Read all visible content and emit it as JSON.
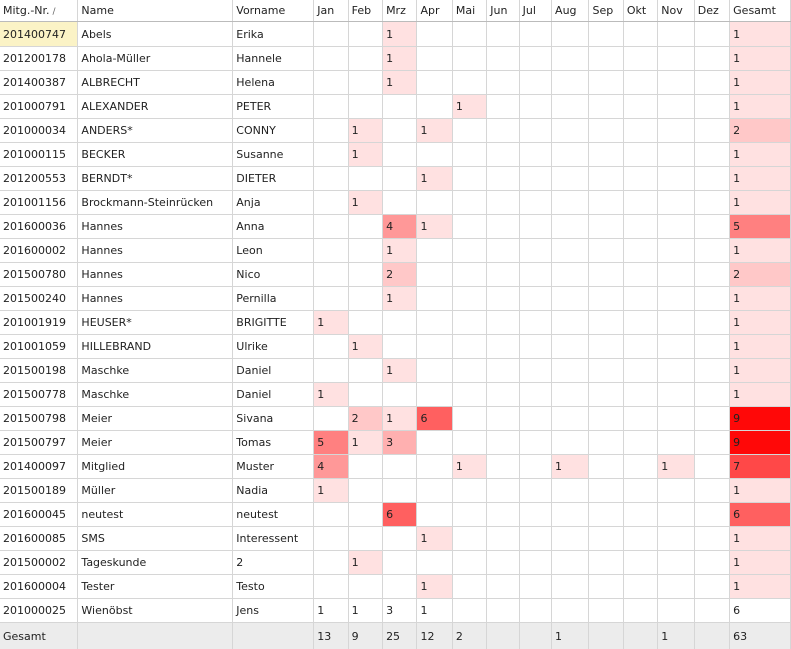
{
  "columns": [
    {
      "key": "nr",
      "label": "Mitg.-Nr.",
      "sort_indicator": "/"
    },
    {
      "key": "name",
      "label": "Name"
    },
    {
      "key": "vorname",
      "label": "Vorname"
    },
    {
      "key": "jan",
      "label": "Jan"
    },
    {
      "key": "feb",
      "label": "Feb"
    },
    {
      "key": "mrz",
      "label": "Mrz"
    },
    {
      "key": "apr",
      "label": "Apr"
    },
    {
      "key": "mai",
      "label": "Mai"
    },
    {
      "key": "jun",
      "label": "Jun"
    },
    {
      "key": "jul",
      "label": "Jul"
    },
    {
      "key": "aug",
      "label": "Aug"
    },
    {
      "key": "sep",
      "label": "Sep"
    },
    {
      "key": "okt",
      "label": "Okt"
    },
    {
      "key": "nov",
      "label": "Nov"
    },
    {
      "key": "dez",
      "label": "Dez"
    },
    {
      "key": "gesamt",
      "label": "Gesamt"
    }
  ],
  "heat_colors": {
    "1": "#ffe1e1",
    "2": "#ffc8c8",
    "3": "#ffb0b0",
    "4": "#ff9898",
    "5": "#ff8080",
    "6": "#ff6060",
    "7": "#ff4848",
    "9": "#ff0808"
  },
  "selected_row": 0,
  "rows": [
    {
      "nr": "201400747",
      "name": "Abels",
      "vorname": "Erika",
      "months": [
        "",
        "",
        "1",
        "",
        "",
        "",
        "",
        "",
        "",
        "",
        "",
        ""
      ],
      "gesamt": "1",
      "heat": true
    },
    {
      "nr": "201200178",
      "name": "Ahola-Müller",
      "vorname": "Hannele",
      "months": [
        "",
        "",
        "1",
        "",
        "",
        "",
        "",
        "",
        "",
        "",
        "",
        ""
      ],
      "gesamt": "1",
      "heat": true
    },
    {
      "nr": "201400387",
      "name": "ALBRECHT",
      "vorname": "Helena",
      "months": [
        "",
        "",
        "1",
        "",
        "",
        "",
        "",
        "",
        "",
        "",
        "",
        ""
      ],
      "gesamt": "1",
      "heat": true
    },
    {
      "nr": "201000791",
      "name": "ALEXANDER",
      "vorname": "PETER",
      "months": [
        "",
        "",
        "",
        "",
        "1",
        "",
        "",
        "",
        "",
        "",
        "",
        ""
      ],
      "gesamt": "1",
      "heat": true
    },
    {
      "nr": "201000034",
      "name": "ANDERS*",
      "vorname": "CONNY",
      "months": [
        "",
        "1",
        "",
        "1",
        "",
        "",
        "",
        "",
        "",
        "",
        "",
        ""
      ],
      "gesamt": "2",
      "heat": true
    },
    {
      "nr": "201000115",
      "name": "BECKER",
      "vorname": "Susanne",
      "months": [
        "",
        "1",
        "",
        "",
        "",
        "",
        "",
        "",
        "",
        "",
        "",
        ""
      ],
      "gesamt": "1",
      "heat": true
    },
    {
      "nr": "201200553",
      "name": "BERNDT*",
      "vorname": "DIETER",
      "months": [
        "",
        "",
        "",
        "1",
        "",
        "",
        "",
        "",
        "",
        "",
        "",
        ""
      ],
      "gesamt": "1",
      "heat": true
    },
    {
      "nr": "201001156",
      "name": "Brockmann-Steinrücken",
      "vorname": "Anja",
      "months": [
        "",
        "1",
        "",
        "",
        "",
        "",
        "",
        "",
        "",
        "",
        "",
        ""
      ],
      "gesamt": "1",
      "heat": true
    },
    {
      "nr": "201600036",
      "name": "Hannes",
      "vorname": "Anna",
      "months": [
        "",
        "",
        "4",
        "1",
        "",
        "",
        "",
        "",
        "",
        "",
        "",
        ""
      ],
      "gesamt": "5",
      "heat": true
    },
    {
      "nr": "201600002",
      "name": "Hannes",
      "vorname": "Leon",
      "months": [
        "",
        "",
        "1",
        "",
        "",
        "",
        "",
        "",
        "",
        "",
        "",
        ""
      ],
      "gesamt": "1",
      "heat": true
    },
    {
      "nr": "201500780",
      "name": "Hannes",
      "vorname": "Nico",
      "months": [
        "",
        "",
        "2",
        "",
        "",
        "",
        "",
        "",
        "",
        "",
        "",
        ""
      ],
      "gesamt": "2",
      "heat": true
    },
    {
      "nr": "201500240",
      "name": "Hannes",
      "vorname": "Pernilla",
      "months": [
        "",
        "",
        "1",
        "",
        "",
        "",
        "",
        "",
        "",
        "",
        "",
        ""
      ],
      "gesamt": "1",
      "heat": true
    },
    {
      "nr": "201001919",
      "name": "HEUSER*",
      "vorname": "BRIGITTE",
      "months": [
        "1",
        "",
        "",
        "",
        "",
        "",
        "",
        "",
        "",
        "",
        "",
        ""
      ],
      "gesamt": "1",
      "heat": true
    },
    {
      "nr": "201001059",
      "name": "HILLEBRAND",
      "vorname": "Ulrike",
      "months": [
        "",
        "1",
        "",
        "",
        "",
        "",
        "",
        "",
        "",
        "",
        "",
        ""
      ],
      "gesamt": "1",
      "heat": true
    },
    {
      "nr": "201500198",
      "name": "Maschke",
      "vorname": "Daniel",
      "months": [
        "",
        "",
        "1",
        "",
        "",
        "",
        "",
        "",
        "",
        "",
        "",
        ""
      ],
      "gesamt": "1",
      "heat": true
    },
    {
      "nr": "201500778",
      "name": "Maschke",
      "vorname": "Daniel",
      "months": [
        "1",
        "",
        "",
        "",
        "",
        "",
        "",
        "",
        "",
        "",
        "",
        ""
      ],
      "gesamt": "1",
      "heat": true
    },
    {
      "nr": "201500798",
      "name": "Meier",
      "vorname": "Sivana",
      "months": [
        "",
        "2",
        "1",
        "6",
        "",
        "",
        "",
        "",
        "",
        "",
        "",
        ""
      ],
      "gesamt": "9",
      "heat": true
    },
    {
      "nr": "201500797",
      "name": "Meier",
      "vorname": "Tomas",
      "months": [
        "5",
        "1",
        "3",
        "",
        "",
        "",
        "",
        "",
        "",
        "",
        "",
        ""
      ],
      "gesamt": "9",
      "heat": true
    },
    {
      "nr": "201400097",
      "name": "Mitglied",
      "vorname": "Muster",
      "months": [
        "4",
        "",
        "",
        "",
        "1",
        "",
        "",
        "1",
        "",
        "",
        "1",
        ""
      ],
      "gesamt": "7",
      "heat": true
    },
    {
      "nr": "201500189",
      "name": "Müller",
      "vorname": "Nadia",
      "months": [
        "1",
        "",
        "",
        "",
        "",
        "",
        "",
        "",
        "",
        "",
        "",
        ""
      ],
      "gesamt": "1",
      "heat": true
    },
    {
      "nr": "201600045",
      "name": "neutest",
      "vorname": "neutest",
      "months": [
        "",
        "",
        "6",
        "",
        "",
        "",
        "",
        "",
        "",
        "",
        "",
        ""
      ],
      "gesamt": "6",
      "heat": true
    },
    {
      "nr": "201600085",
      "name": "SMS",
      "vorname": "Interessent",
      "months": [
        "",
        "",
        "",
        "1",
        "",
        "",
        "",
        "",
        "",
        "",
        "",
        ""
      ],
      "gesamt": "1",
      "heat": true
    },
    {
      "nr": "201500002",
      "name": "Tageskunde",
      "vorname": "2",
      "months": [
        "",
        "1",
        "",
        "",
        "",
        "",
        "",
        "",
        "",
        "",
        "",
        ""
      ],
      "gesamt": "1",
      "heat": true
    },
    {
      "nr": "201600004",
      "name": "Tester",
      "vorname": "Testo",
      "months": [
        "",
        "",
        "",
        "1",
        "",
        "",
        "",
        "",
        "",
        "",
        "",
        ""
      ],
      "gesamt": "1",
      "heat": true
    },
    {
      "nr": "201000025",
      "name": "Wienöbst",
      "vorname": "Jens",
      "months": [
        "1",
        "1",
        "3",
        "1",
        "",
        "",
        "",
        "",
        "",
        "",
        "",
        ""
      ],
      "gesamt": "6",
      "heat": false
    }
  ],
  "footer": {
    "label": "Gesamt",
    "months": [
      "13",
      "9",
      "25",
      "12",
      "2",
      "",
      "",
      "1",
      "",
      "",
      "1",
      ""
    ],
    "gesamt": "63"
  }
}
